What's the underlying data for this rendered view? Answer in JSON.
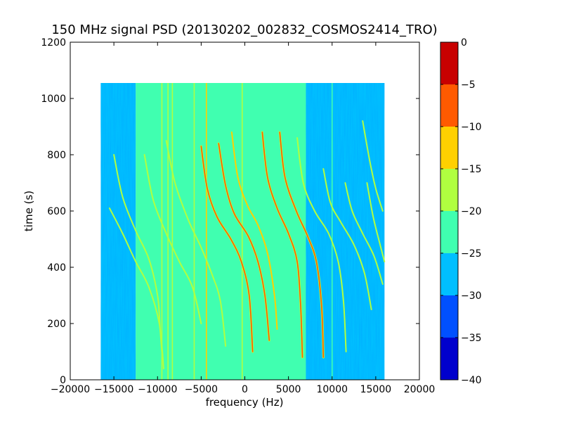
{
  "chart_data": {
    "type": "heatmap",
    "title": "150 MHz signal PSD (20130202_002832_COSMOS2414_TRO)",
    "xlabel": "frequency (Hz)",
    "ylabel": "time (s)",
    "xlim": [
      -20000,
      20000
    ],
    "ylim": [
      0,
      1200
    ],
    "x_ticks": [
      -20000,
      -15000,
      -10000,
      -5000,
      0,
      5000,
      10000,
      15000,
      20000
    ],
    "y_ticks": [
      0,
      200,
      400,
      600,
      800,
      1000,
      1200
    ],
    "data_extent": {
      "x": [
        -16500,
        16000
      ],
      "y": [
        0,
        1055
      ]
    },
    "grid": false,
    "colorbar": {
      "range": [
        -40,
        0
      ],
      "ticks": [
        0,
        -5,
        -10,
        -15,
        -20,
        -25,
        -30,
        -35,
        -40
      ],
      "levels": [
        {
          "from": -40,
          "to": -35,
          "color": "#0000cd"
        },
        {
          "from": -35,
          "to": -30,
          "color": "#0050ff"
        },
        {
          "from": -30,
          "to": -25,
          "color": "#00bfff"
        },
        {
          "from": -25,
          "to": -20,
          "color": "#40ffb0"
        },
        {
          "from": -20,
          "to": -15,
          "color": "#b0ff40"
        },
        {
          "from": -15,
          "to": -10,
          "color": "#ffd000"
        },
        {
          "from": -10,
          "to": -5,
          "color": "#ff5a00"
        },
        {
          "from": -5,
          "to": 0,
          "color": "#c80000"
        }
      ]
    },
    "background_bands": [
      {
        "x": [
          -16500,
          -12500
        ],
        "level": -25,
        "noisy": true
      },
      {
        "x": [
          -12500,
          7000
        ],
        "level": -22.5,
        "noisy": false
      },
      {
        "x": [
          7000,
          16000
        ],
        "level": -28,
        "noisy": true
      }
    ],
    "vertical_lines": [
      {
        "x": -9500,
        "y": [
          0,
          1055
        ],
        "level": -15
      },
      {
        "x": -8800,
        "y": [
          0,
          1055
        ],
        "level": -15
      },
      {
        "x": -8300,
        "y": [
          0,
          1055
        ],
        "level": -15
      },
      {
        "x": -5800,
        "y": [
          0,
          1055
        ],
        "level": -15
      },
      {
        "x": -4400,
        "y": [
          0,
          1055
        ],
        "level": -10
      },
      {
        "x": -3800,
        "y": [
          0,
          1055
        ],
        "level": -20
      },
      {
        "x": -300,
        "y": [
          0,
          1055
        ],
        "level": -18
      },
      {
        "x": 10000,
        "y": [
          0,
          1055
        ],
        "level": -20
      }
    ],
    "doppler_tracks": [
      {
        "level": -18,
        "points": [
          [
            -15000,
            800
          ],
          [
            -14000,
            650
          ],
          [
            -12500,
            530
          ],
          [
            -11000,
            430
          ],
          [
            -10000,
            300
          ],
          [
            -9700,
            180
          ],
          [
            -9500,
            100
          ]
        ]
      },
      {
        "level": -18,
        "points": [
          [
            -15500,
            610
          ],
          [
            -14000,
            520
          ],
          [
            -12500,
            420
          ],
          [
            -11000,
            330
          ],
          [
            -9800,
            200
          ],
          [
            -9300,
            40
          ]
        ]
      },
      {
        "level": -18,
        "points": [
          [
            -11500,
            800
          ],
          [
            -10500,
            640
          ],
          [
            -9000,
            520
          ],
          [
            -7500,
            420
          ],
          [
            -6000,
            330
          ],
          [
            -5000,
            200
          ]
        ]
      },
      {
        "level": -18,
        "points": [
          [
            -9000,
            850
          ],
          [
            -8000,
            700
          ],
          [
            -6500,
            570
          ],
          [
            -5000,
            470
          ],
          [
            -3700,
            370
          ],
          [
            -2800,
            280
          ],
          [
            -2200,
            120
          ]
        ]
      },
      {
        "level": -5,
        "points": [
          [
            -5000,
            830
          ],
          [
            -4300,
            680
          ],
          [
            -3200,
            580
          ],
          [
            -1600,
            500
          ],
          [
            -400,
            420
          ],
          [
            500,
            300
          ],
          [
            900,
            100
          ]
        ]
      },
      {
        "level": -8,
        "points": [
          [
            -3000,
            840
          ],
          [
            -2200,
            690
          ],
          [
            -1200,
            590
          ],
          [
            400,
            510
          ],
          [
            1500,
            420
          ],
          [
            2300,
            300
          ],
          [
            2800,
            140
          ]
        ]
      },
      {
        "level": -12,
        "points": [
          [
            -1500,
            880
          ],
          [
            -800,
            720
          ],
          [
            300,
            620
          ],
          [
            1500,
            550
          ],
          [
            2600,
            450
          ],
          [
            3400,
            300
          ],
          [
            3700,
            180
          ]
        ]
      },
      {
        "level": -5,
        "points": [
          [
            2000,
            880
          ],
          [
            2600,
            720
          ],
          [
            3700,
            610
          ],
          [
            5000,
            520
          ],
          [
            6000,
            420
          ],
          [
            6400,
            260
          ],
          [
            6600,
            80
          ]
        ]
      },
      {
        "level": -5,
        "points": [
          [
            4000,
            880
          ],
          [
            4600,
            720
          ],
          [
            5900,
            600
          ],
          [
            7200,
            510
          ],
          [
            8200,
            420
          ],
          [
            8800,
            260
          ],
          [
            9000,
            80
          ]
        ]
      },
      {
        "level": -18,
        "points": [
          [
            6000,
            860
          ],
          [
            6700,
            700
          ],
          [
            8000,
            600
          ],
          [
            9600,
            520
          ],
          [
            10700,
            420
          ],
          [
            11300,
            280
          ],
          [
            11600,
            100
          ]
        ]
      },
      {
        "level": -18,
        "points": [
          [
            9000,
            750
          ],
          [
            9800,
            630
          ],
          [
            11000,
            560
          ],
          [
            12500,
            480
          ],
          [
            13700,
            380
          ],
          [
            14500,
            250
          ]
        ]
      },
      {
        "level": -18,
        "points": [
          [
            11500,
            700
          ],
          [
            12300,
            600
          ],
          [
            13500,
            520
          ],
          [
            14800,
            440
          ],
          [
            15800,
            340
          ]
        ]
      },
      {
        "level": -18,
        "points": [
          [
            13500,
            920
          ],
          [
            14300,
            780
          ],
          [
            15000,
            680
          ],
          [
            15800,
            600
          ]
        ]
      },
      {
        "level": -18,
        "points": [
          [
            14000,
            700
          ],
          [
            14700,
            580
          ],
          [
            15500,
            480
          ],
          [
            16000,
            420
          ]
        ]
      }
    ]
  }
}
